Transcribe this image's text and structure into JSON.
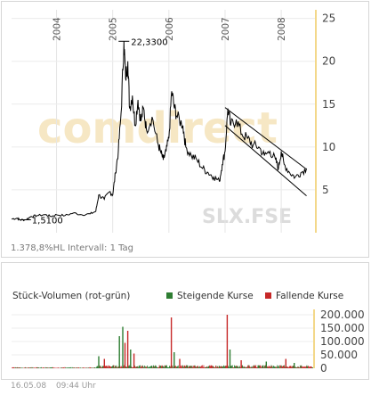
{
  "chart_data": [
    {
      "type": "line",
      "watermark": "comdirect",
      "symbol": "SLX.FSE",
      "x_ticks": [
        "2004",
        "2005",
        "2006",
        "2007",
        "2008"
      ],
      "y_ticks": [
        5,
        10,
        15,
        20,
        25
      ],
      "ylim": [
        0,
        26
      ],
      "xlim": [
        2003.2,
        2008.6
      ],
      "annotation_max": {
        "label": "22,3300",
        "x": 2005.2,
        "y": 22.33
      },
      "annotation_min": {
        "label": "1,5100",
        "x": 2003.45,
        "y": 1.51
      },
      "info_text": "1.378,8%HL  Intervall: 1 Tag",
      "channel": {
        "upper": [
          [
            2007.0,
            14.6
          ],
          [
            2008.45,
            7.4
          ]
        ],
        "lower": [
          [
            2007.0,
            12.5
          ],
          [
            2008.45,
            4.3
          ]
        ]
      },
      "series": [
        {
          "values": [
            [
              2003.2,
              1.6
            ],
            [
              2003.3,
              1.7
            ],
            [
              2003.35,
              1.5
            ],
            [
              2003.45,
              1.51
            ],
            [
              2003.55,
              1.9
            ],
            [
              2003.65,
              2.0
            ],
            [
              2003.8,
              2.1
            ],
            [
              2003.9,
              1.9
            ],
            [
              2004.0,
              2.1
            ],
            [
              2004.15,
              2.0
            ],
            [
              2004.3,
              2.3
            ],
            [
              2004.45,
              2.1
            ],
            [
              2004.6,
              2.2
            ],
            [
              2004.7,
              2.5
            ],
            [
              2004.75,
              4.4
            ],
            [
              2004.85,
              3.9
            ],
            [
              2004.95,
              4.8
            ],
            [
              2005.0,
              4.4
            ],
            [
              2005.05,
              7.0
            ],
            [
              2005.1,
              9.5
            ],
            [
              2005.15,
              14.0
            ],
            [
              2005.2,
              22.33
            ],
            [
              2005.23,
              18.0
            ],
            [
              2005.27,
              20.0
            ],
            [
              2005.3,
              14.5
            ],
            [
              2005.35,
              16.0
            ],
            [
              2005.4,
              12.5
            ],
            [
              2005.45,
              15.5
            ],
            [
              2005.5,
              13.0
            ],
            [
              2005.55,
              14.5
            ],
            [
              2005.6,
              12.0
            ],
            [
              2005.7,
              13.5
            ],
            [
              2005.8,
              10.5
            ],
            [
              2005.85,
              9.5
            ],
            [
              2005.9,
              8.5
            ],
            [
              2005.95,
              9.5
            ],
            [
              2006.0,
              11.0
            ],
            [
              2006.05,
              16.5
            ],
            [
              2006.1,
              14.5
            ],
            [
              2006.15,
              13.5
            ],
            [
              2006.25,
              12.5
            ],
            [
              2006.3,
              10.0
            ],
            [
              2006.4,
              9.0
            ],
            [
              2006.5,
              8.5
            ],
            [
              2006.6,
              7.5
            ],
            [
              2006.7,
              7.0
            ],
            [
              2006.8,
              6.5
            ],
            [
              2006.9,
              6.0
            ],
            [
              2006.95,
              8.0
            ],
            [
              2007.0,
              9.5
            ],
            [
              2007.05,
              14.5
            ],
            [
              2007.1,
              12.5
            ],
            [
              2007.2,
              13.2
            ],
            [
              2007.3,
              11.5
            ],
            [
              2007.4,
              11.0
            ],
            [
              2007.5,
              10.2
            ],
            [
              2007.6,
              10.0
            ],
            [
              2007.7,
              9.0
            ],
            [
              2007.8,
              9.5
            ],
            [
              2007.9,
              8.5
            ],
            [
              2007.95,
              7.5
            ],
            [
              2008.0,
              9.5
            ],
            [
              2008.05,
              8.0
            ],
            [
              2008.15,
              7.0
            ],
            [
              2008.25,
              6.5
            ],
            [
              2008.35,
              7.0
            ],
            [
              2008.45,
              7.5
            ]
          ]
        }
      ]
    },
    {
      "type": "bar",
      "title": "Stück-Volumen (rot-grün)",
      "legend": [
        {
          "label": "Steigende Kurse",
          "color": "#2e7d32"
        },
        {
          "label": "Fallende Kurse",
          "color": "#c62828"
        }
      ],
      "y_ticks": [
        "0",
        "50.000",
        "100.000",
        "150.000",
        "200.000"
      ],
      "ylim": [
        0,
        220000
      ],
      "spikes": [
        {
          "x": 2004.75,
          "value": 45000,
          "color": "#2e7d32"
        },
        {
          "x": 2004.85,
          "value": 35000,
          "color": "#c62828"
        },
        {
          "x": 2005.12,
          "value": 120000,
          "color": "#2e7d32"
        },
        {
          "x": 2005.18,
          "value": 155000,
          "color": "#2e7d32"
        },
        {
          "x": 2005.22,
          "value": 95000,
          "color": "#c62828"
        },
        {
          "x": 2005.27,
          "value": 140000,
          "color": "#c62828"
        },
        {
          "x": 2005.32,
          "value": 70000,
          "color": "#2e7d32"
        },
        {
          "x": 2005.38,
          "value": 55000,
          "color": "#c62828"
        },
        {
          "x": 2006.05,
          "value": 190000,
          "color": "#c62828"
        },
        {
          "x": 2006.1,
          "value": 60000,
          "color": "#2e7d32"
        },
        {
          "x": 2006.2,
          "value": 35000,
          "color": "#c62828"
        },
        {
          "x": 2007.05,
          "value": 200000,
          "color": "#c62828"
        },
        {
          "x": 2007.1,
          "value": 70000,
          "color": "#2e7d32"
        },
        {
          "x": 2007.3,
          "value": 30000,
          "color": "#c62828"
        },
        {
          "x": 2007.75,
          "value": 25000,
          "color": "#2e7d32"
        },
        {
          "x": 2008.1,
          "value": 35000,
          "color": "#c62828"
        },
        {
          "x": 2008.25,
          "value": 20000,
          "color": "#2e7d32"
        }
      ]
    }
  ],
  "footer": {
    "date": "16.05.08",
    "time": "09:44 Uhr"
  }
}
